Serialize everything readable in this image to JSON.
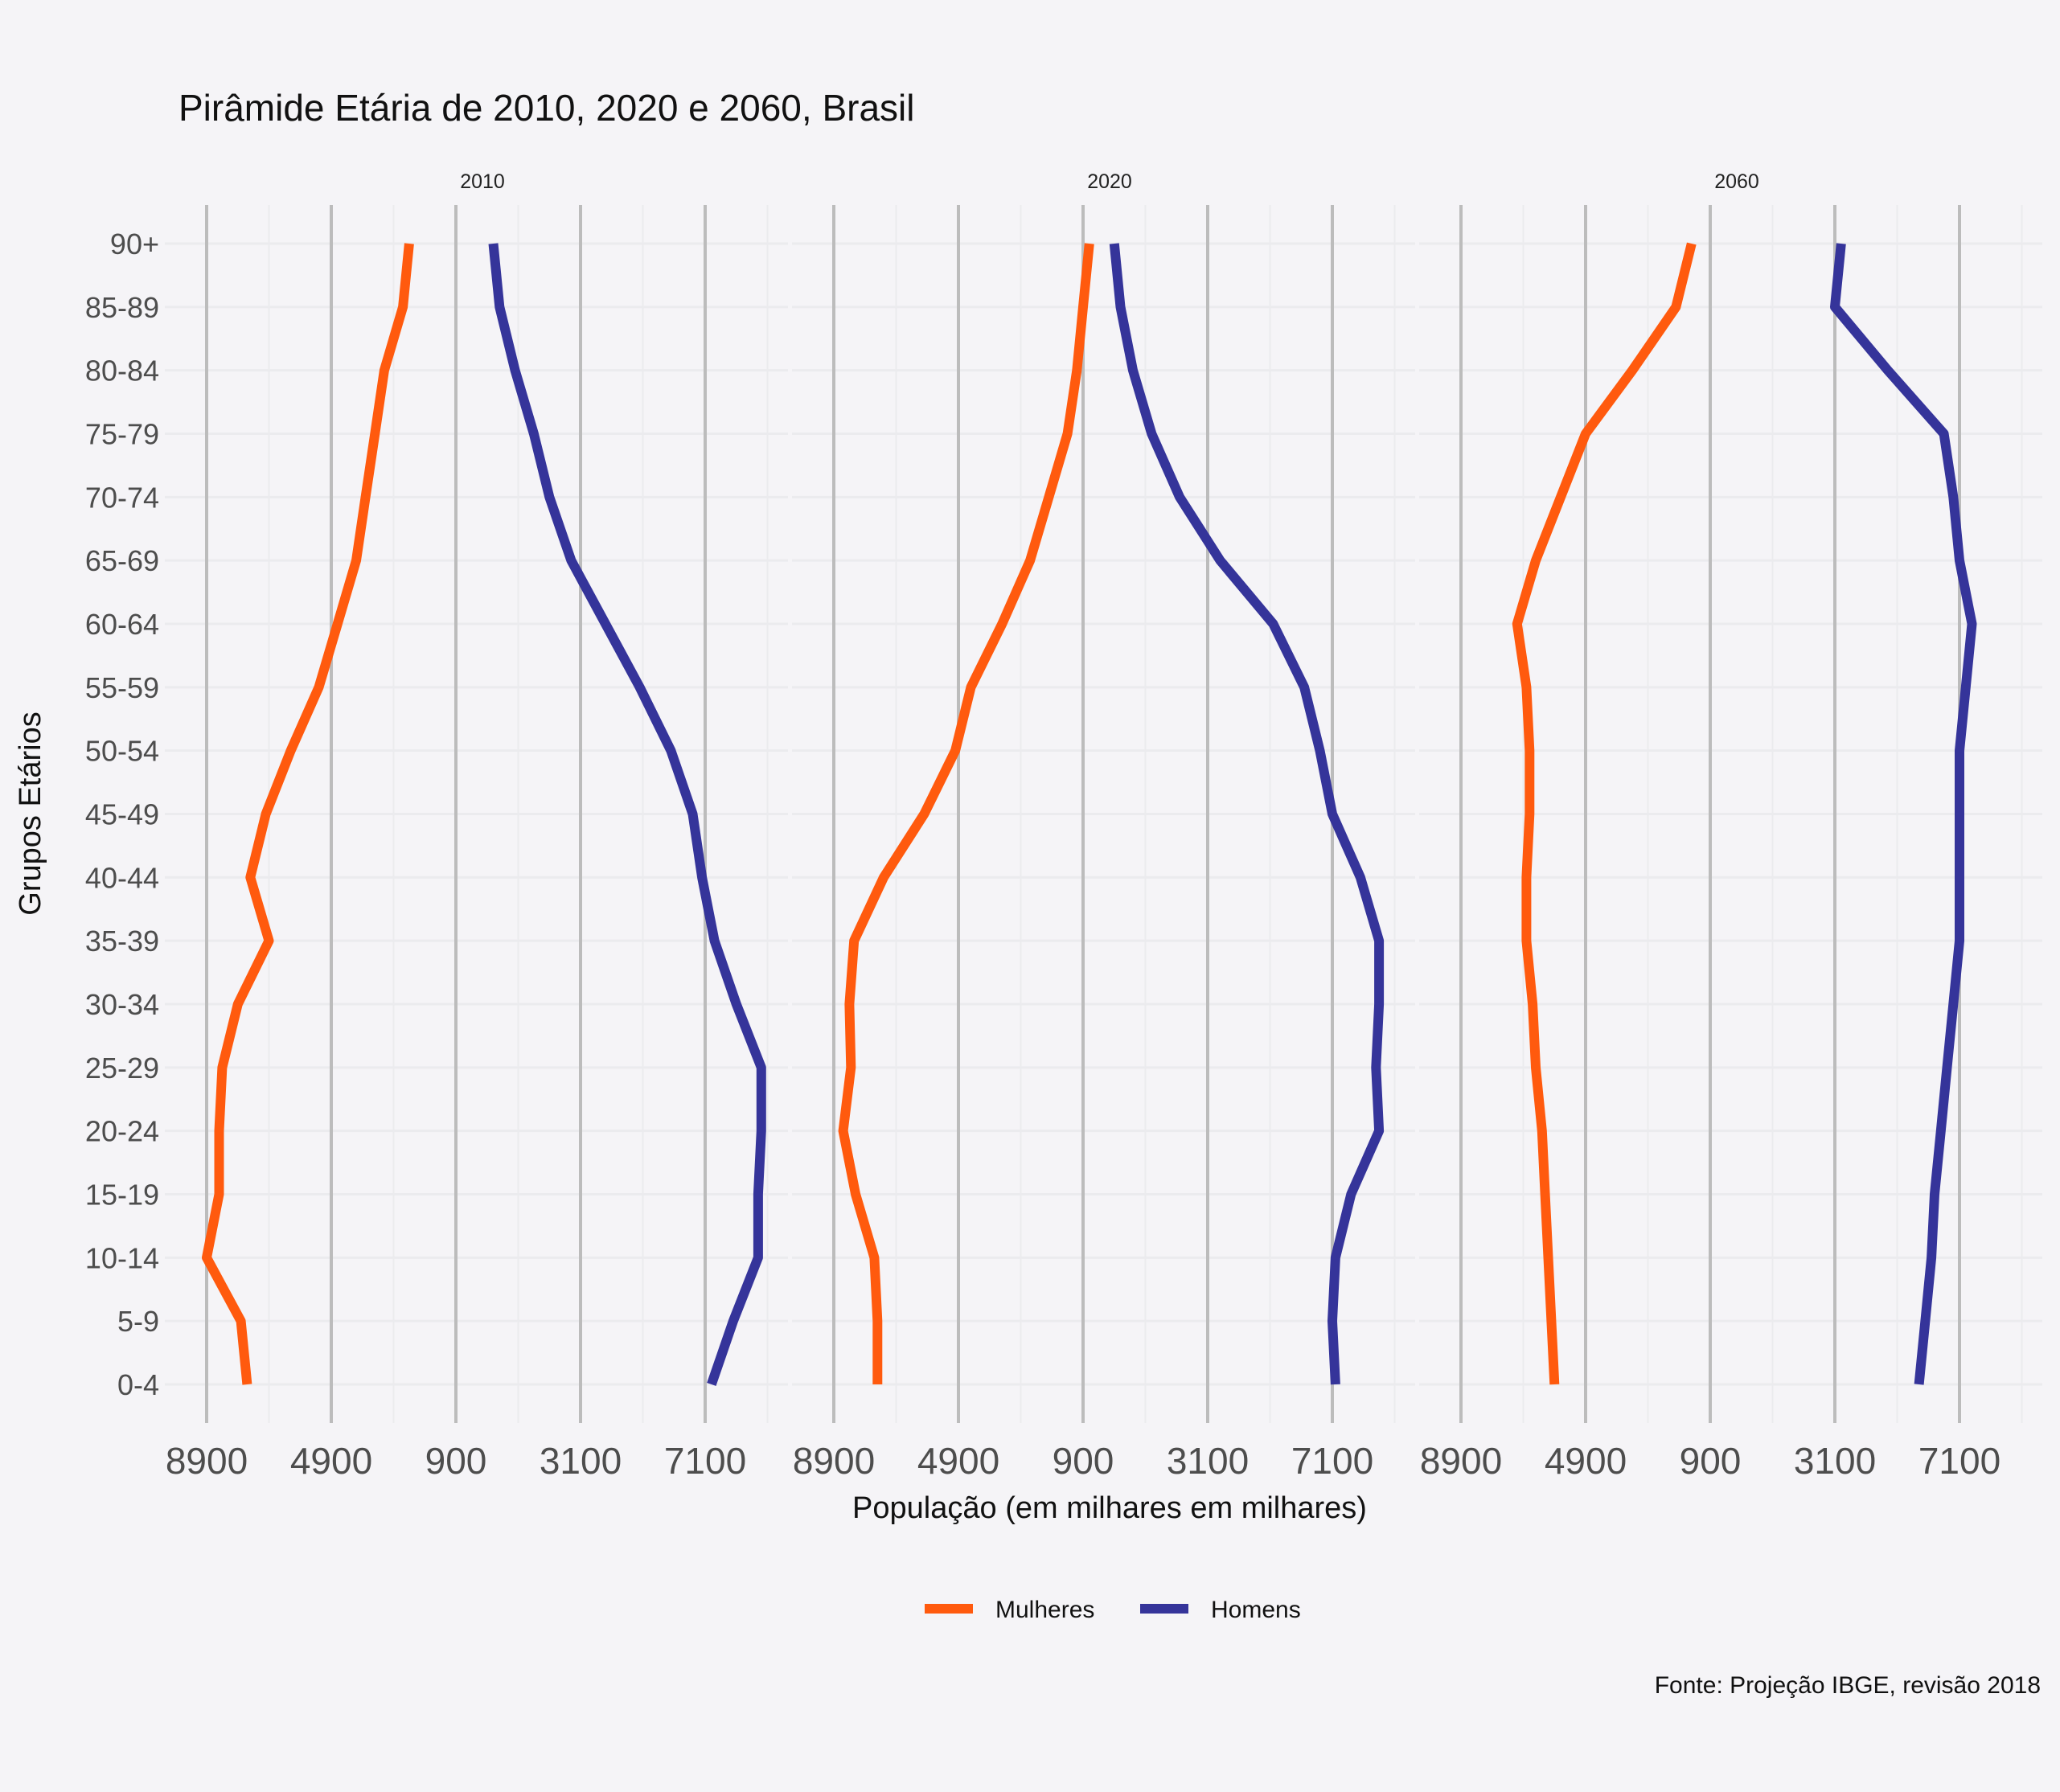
{
  "chart_data": {
    "type": "line",
    "title": "Pirâmide Etária de 2010, 2020 e 2060, Brasil",
    "xlabel": "População (em milhares em milhares)",
    "ylabel": "Grupos Etários",
    "caption": "Fonte: Projeção IBGE, revisão 2018",
    "x_tick_labels": [
      "8900",
      "4900",
      "900",
      "3100",
      "7100"
    ],
    "x_tick_values": [
      -8900,
      -4900,
      -900,
      3100,
      7100
    ],
    "xlim": [
      -8900,
      9000
    ],
    "categories": [
      "0-4",
      "5-9",
      "10-14",
      "15-19",
      "20-24",
      "25-29",
      "30-34",
      "35-39",
      "40-44",
      "45-49",
      "50-54",
      "55-59",
      "60-64",
      "65-69",
      "70-74",
      "75-79",
      "80-84",
      "85-89",
      "90+"
    ],
    "legend": {
      "position": "bottom",
      "entries": [
        "Mulheres",
        "Homens"
      ]
    },
    "colors": {
      "Mulheres": "#ff5a0e",
      "Homens": "#35349a",
      "background": "#f5f4f7"
    },
    "grid": true,
    "panels": [
      {
        "label": "2010",
        "series": [
          {
            "name": "Mulheres",
            "values": [
              -7600,
              -7800,
              -8900,
              -8500,
              -8500,
              -8400,
              -7900,
              -6900,
              -7500,
              -7000,
              -6200,
              -5300,
              -4700,
              -4100,
              -3800,
              -3500,
              -3200,
              -2600,
              -2400
            ]
          },
          {
            "name": "Homens",
            "values": [
              7300,
              8000,
              8800,
              8800,
              8900,
              8900,
              8100,
              7400,
              7000,
              6700,
              6000,
              5000,
              3900,
              2800,
              2100,
              1600,
              1000,
              500,
              300
            ]
          }
        ]
      },
      {
        "label": "2020",
        "series": [
          {
            "name": "Mulheres",
            "values": [
              -7500,
              -7500,
              -7600,
              -8200,
              -8600,
              -8350,
              -8400,
              -8250,
              -7300,
              -6000,
              -5000,
              -4500,
              -3500,
              -2600,
              -2000,
              -1400,
              -1100,
              -900,
              -700
            ]
          },
          {
            "name": "Homens",
            "values": [
              7200,
              7100,
              7200,
              7700,
              8600,
              8500,
              8600,
              8600,
              8000,
              7100,
              6700,
              6200,
              5200,
              3500,
              2200,
              1300,
              700,
              300,
              100
            ]
          }
        ]
      },
      {
        "label": "2060",
        "series": [
          {
            "name": "Mulheres",
            "values": [
              -5900,
              -6000,
              -6100,
              -6200,
              -6300,
              -6500,
              -6600,
              -6800,
              -6800,
              -6700,
              -6700,
              -6800,
              -7100,
              -6500,
              -5700,
              -4900,
              -3400,
              -2000,
              -1500
            ]
          },
          {
            "name": "Homens",
            "values": [
              5800,
              6000,
              6200,
              6300,
              6500,
              6700,
              6900,
              7100,
              7100,
              7100,
              7100,
              7300,
              7500,
              7100,
              6900,
              6600,
              4800,
              3100,
              3300
            ]
          }
        ]
      }
    ]
  }
}
